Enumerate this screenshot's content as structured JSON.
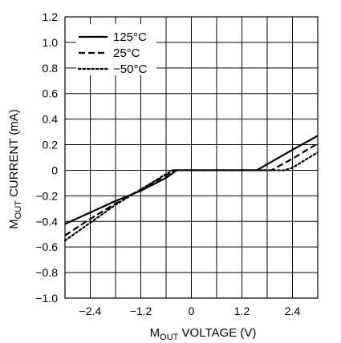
{
  "chart_data": {
    "type": "line",
    "title": "",
    "xlabel": "M₀ᵤₜ VOLTAGE (V)",
    "ylabel": "M₀ᵤₜ CURRENT (mA)",
    "xlabel_parts": {
      "prefix": "M",
      "subscript": "OUT",
      "suffix": " VOLTAGE (V)"
    },
    "ylabel_parts": {
      "prefix": "M",
      "subscript": "OUT",
      "suffix": " CURRENT (mA)"
    },
    "xlim": [
      -3.0,
      3.0
    ],
    "ylim": [
      -1.0,
      1.2
    ],
    "x_grid_step": 0.6,
    "y_grid_step": 0.2,
    "xticks": [
      {
        "value": -2.4,
        "label": "−2.4"
      },
      {
        "value": -1.2,
        "label": "−1.2"
      },
      {
        "value": 0,
        "label": "0"
      },
      {
        "value": 1.2,
        "label": "1.2"
      },
      {
        "value": 2.4,
        "label": "2.4"
      }
    ],
    "yticks": [
      {
        "value": 1.2,
        "label": "1.2"
      },
      {
        "value": 1.0,
        "label": "1.0"
      },
      {
        "value": 0.8,
        "label": "0.8"
      },
      {
        "value": 0.6,
        "label": "0.6"
      },
      {
        "value": 0.4,
        "label": "0.4"
      },
      {
        "value": 0.2,
        "label": "0.2"
      },
      {
        "value": 0,
        "label": "0"
      },
      {
        "value": -0.2,
        "label": "−0.2"
      },
      {
        "value": -0.4,
        "label": "−0.4"
      },
      {
        "value": -0.6,
        "label": "−0.6"
      },
      {
        "value": -0.8,
        "label": "−0.8"
      },
      {
        "value": -1.0,
        "label": "−1.0"
      }
    ],
    "grid": true,
    "legend_position": "top-left",
    "series": [
      {
        "name": "125°C",
        "style": "solid",
        "points": [
          [
            -3.0,
            -0.42
          ],
          [
            -2.4,
            -0.33
          ],
          [
            -1.8,
            -0.24
          ],
          [
            -1.2,
            -0.16
          ],
          [
            -0.6,
            -0.06
          ],
          [
            -0.35,
            0.0
          ],
          [
            0.0,
            0.0
          ],
          [
            1.2,
            0.0
          ],
          [
            1.55,
            0.0
          ],
          [
            2.4,
            0.16
          ],
          [
            3.0,
            0.27
          ]
        ]
      },
      {
        "name": "25°C",
        "style": "dashed",
        "points": [
          [
            -3.0,
            -0.51
          ],
          [
            -2.4,
            -0.38
          ],
          [
            -1.8,
            -0.26
          ],
          [
            -1.2,
            -0.15
          ],
          [
            -0.6,
            -0.04
          ],
          [
            -0.4,
            0.0
          ],
          [
            0.0,
            0.0
          ],
          [
            1.2,
            0.0
          ],
          [
            1.9,
            0.0
          ],
          [
            2.4,
            0.09
          ],
          [
            3.0,
            0.21
          ]
        ]
      },
      {
        "name": "−50°C",
        "style": "dotted",
        "points": [
          [
            -3.0,
            -0.55
          ],
          [
            -2.4,
            -0.41
          ],
          [
            -1.8,
            -0.27
          ],
          [
            -1.2,
            -0.15
          ],
          [
            -0.6,
            -0.03
          ],
          [
            -0.45,
            0.0
          ],
          [
            0.0,
            0.0
          ],
          [
            1.2,
            0.0
          ],
          [
            2.2,
            0.0
          ],
          [
            2.4,
            0.02
          ],
          [
            3.0,
            0.14
          ]
        ]
      }
    ]
  }
}
